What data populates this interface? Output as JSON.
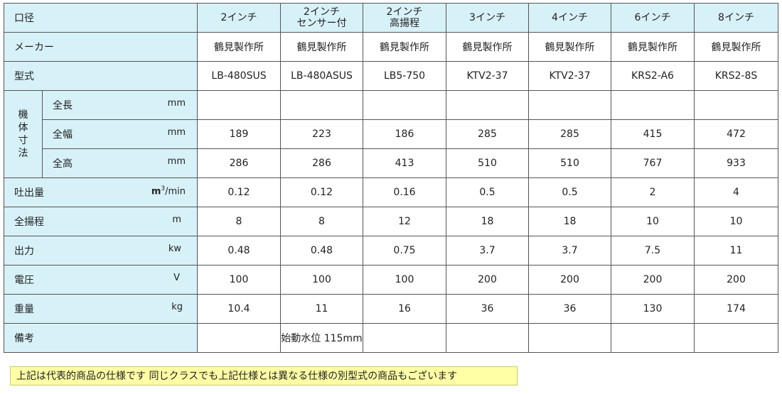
{
  "header": {
    "label": "口径",
    "models": [
      {
        "line1": "2インチ",
        "line2": ""
      },
      {
        "line1": "2インチ",
        "line2": "センサー付"
      },
      {
        "line1": "2インチ",
        "line2": "高揚程"
      },
      {
        "line1": "3インチ",
        "line2": ""
      },
      {
        "line1": "4インチ",
        "line2": ""
      },
      {
        "line1": "6インチ",
        "line2": ""
      },
      {
        "line1": "8インチ",
        "line2": ""
      }
    ]
  },
  "maker": {
    "label": "メーカー",
    "values": [
      "鶴見製作所",
      "鶴見製作所",
      "鶴見製作所",
      "鶴見製作所",
      "鶴見製作所",
      "鶴見製作所",
      "鶴見製作所"
    ]
  },
  "model_type": {
    "label": "型式",
    "values": [
      "LB-480SUS",
      "LB-480ASUS",
      "LB5-750",
      "KTV2-37",
      "KTV2-37",
      "KRS2-A6",
      "KRS2-8S"
    ]
  },
  "dimensions": {
    "group_label": [
      "機",
      "体",
      "寸",
      "法"
    ],
    "length": {
      "label": "全長",
      "unit": "mm",
      "values": [
        "",
        "",
        "",
        "",
        "",
        "",
        ""
      ]
    },
    "width": {
      "label": "全幅",
      "unit": "mm",
      "values": [
        "189",
        "223",
        "186",
        "285",
        "285",
        "415",
        "472"
      ]
    },
    "height": {
      "label": "全高",
      "unit": "mm",
      "values": [
        "286",
        "286",
        "413",
        "510",
        "510",
        "767",
        "933"
      ]
    }
  },
  "discharge": {
    "label": "吐出量",
    "unit": "/min",
    "unit_prefix": "m",
    "unit_sup": "3",
    "values": [
      "0.12",
      "0.12",
      "0.16",
      "0.5",
      "0.5",
      "2",
      "4"
    ]
  },
  "head": {
    "label": "全揚程",
    "unit": "m",
    "values": [
      "8",
      "8",
      "12",
      "18",
      "18",
      "10",
      "10"
    ]
  },
  "output": {
    "label": "出力",
    "unit": "kw",
    "values": [
      "0.48",
      "0.48",
      "0.75",
      "3.7",
      "3.7",
      "7.5",
      "11"
    ]
  },
  "voltage": {
    "label": "電圧",
    "unit": "V",
    "values": [
      "100",
      "100",
      "100",
      "200",
      "200",
      "200",
      "200"
    ]
  },
  "weight": {
    "label": "重量",
    "unit": "kg",
    "values": [
      "10.4",
      "11",
      "16",
      "36",
      "36",
      "130",
      "174"
    ]
  },
  "remarks": {
    "label": "備考",
    "values": [
      "",
      "始動水位 115mm",
      "",
      "",
      "",
      "",
      ""
    ]
  },
  "note": "上記は代表的商品の仕様です 同じクラスでも上記仕様とは異なる仕様の別型式の商品もございます"
}
